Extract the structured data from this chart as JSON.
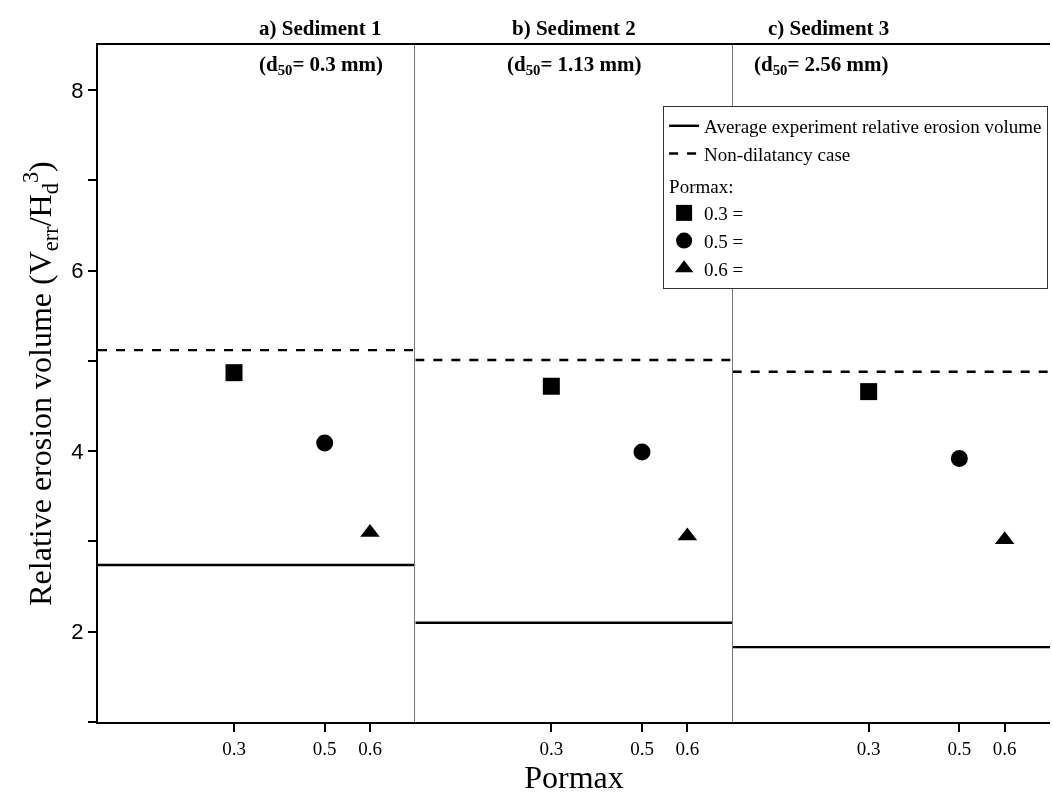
{
  "chart_data": [
    {
      "type": "scatter",
      "title": "a) Sediment 1",
      "subtitle": "(d$_{50}$= 0.3 mm)",
      "ylabel": "Relative erosion volume (V$_{err}$/H$_{d}$$^{3}$)",
      "xlim": [
        0,
        0.7
      ],
      "xticks": [
        0.3,
        0.5,
        0.6
      ],
      "ylim": [
        1,
        8.5
      ],
      "yticks": [
        {
          "value": 1,
          "label": null
        },
        2,
        {
          "value": 3,
          "label": null
        },
        4,
        {
          "value": 5,
          "label": null
        },
        6,
        {
          "value": 7,
          "label": null
        },
        8
      ],
      "series": [
        {
          "color": "#000000",
          "marker": "square",
          "x": [
            0.3
          ],
          "values": [
            4.87
          ]
        },
        {
          "color": "#000000",
          "marker": "circle",
          "x": [
            0.5
          ],
          "values": [
            4.09
          ]
        },
        {
          "color": "#000000",
          "marker": "triangle",
          "x": [
            0.6
          ],
          "values": [
            3.1
          ]
        }
      ],
      "ref_lines": [
        {
          "axis": "y",
          "value": 2.74,
          "color": "#000000",
          "line_style": "solid"
        },
        {
          "axis": "y",
          "value": 5.12,
          "color": "#000000",
          "line_style": "dashed"
        }
      ]
    },
    {
      "type": "scatter",
      "title": "b) Sediment 2",
      "subtitle": "(d$_{50}$= 1.13 mm)",
      "xlabel": "Pormax",
      "legend_title": "Pormax:",
      "legend": "top right",
      "tick_labels": "x",
      "xlim": [
        0,
        0.7
      ],
      "xticks": [
        0.3,
        0.5,
        0.6
      ],
      "ylim": [
        1,
        8.5
      ],
      "series": [
        {
          "name": "0.3 =",
          "color": "#000000",
          "marker": "square",
          "x": [
            0.3
          ],
          "values": [
            4.72
          ]
        },
        {
          "name": "0.5 =",
          "color": "#000000",
          "marker": "circle",
          "x": [
            0.5
          ],
          "values": [
            3.99
          ]
        },
        {
          "name": "0.6 =",
          "color": "#000000",
          "marker": "triangle",
          "x": [
            0.6
          ],
          "values": [
            3.06
          ]
        }
      ],
      "ref_lines": [
        {
          "axis": "y",
          "value": 2.1,
          "color": "#000000",
          "line_style": "solid",
          "label": "Average experiment relative erosion volume"
        },
        {
          "axis": "y",
          "value": 5.01,
          "color": "#000000",
          "line_style": "dashed",
          "label": "Non-dilatancy case"
        }
      ]
    },
    {
      "type": "scatter",
      "title": "c) Sediment 3",
      "subtitle": "(d$_{50}$= 2.56 mm)",
      "tick_labels": "x",
      "xlim": [
        0,
        0.7
      ],
      "xticks": [
        0.3,
        0.5,
        0.6
      ],
      "ylim": [
        1,
        8.5
      ],
      "series": [
        {
          "color": "#000000",
          "marker": "square",
          "x": [
            0.3
          ],
          "values": [
            4.66
          ]
        },
        {
          "color": "#000000",
          "marker": "circle",
          "x": [
            0.5
          ],
          "values": [
            3.92
          ]
        },
        {
          "color": "#000000",
          "marker": "triangle",
          "x": [
            0.6
          ],
          "values": [
            3.02
          ]
        }
      ],
      "ref_lines": [
        {
          "axis": "y",
          "value": 1.83,
          "color": "#000000",
          "line_style": "solid"
        },
        {
          "axis": "y",
          "value": 4.88,
          "color": "#000000",
          "line_style": "dashed"
        }
      ]
    }
  ]
}
